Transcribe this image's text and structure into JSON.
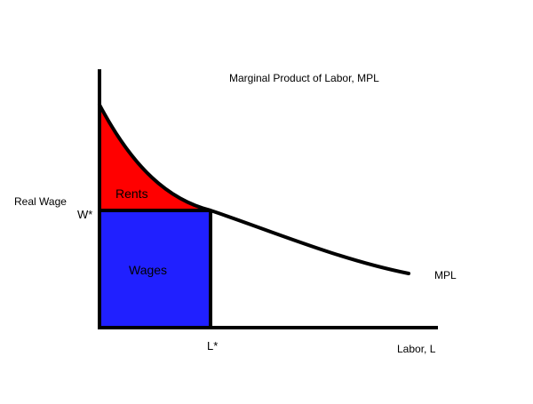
{
  "title": "Marginal Product of Labor, MPL",
  "y_axis_label": "Real Wage",
  "wage_marker": "W*",
  "regions": {
    "rents": "Rents",
    "wages": "Wages"
  },
  "labor_marker": "L*",
  "x_axis_label": "Labor, L",
  "curve_label": "MPL"
}
